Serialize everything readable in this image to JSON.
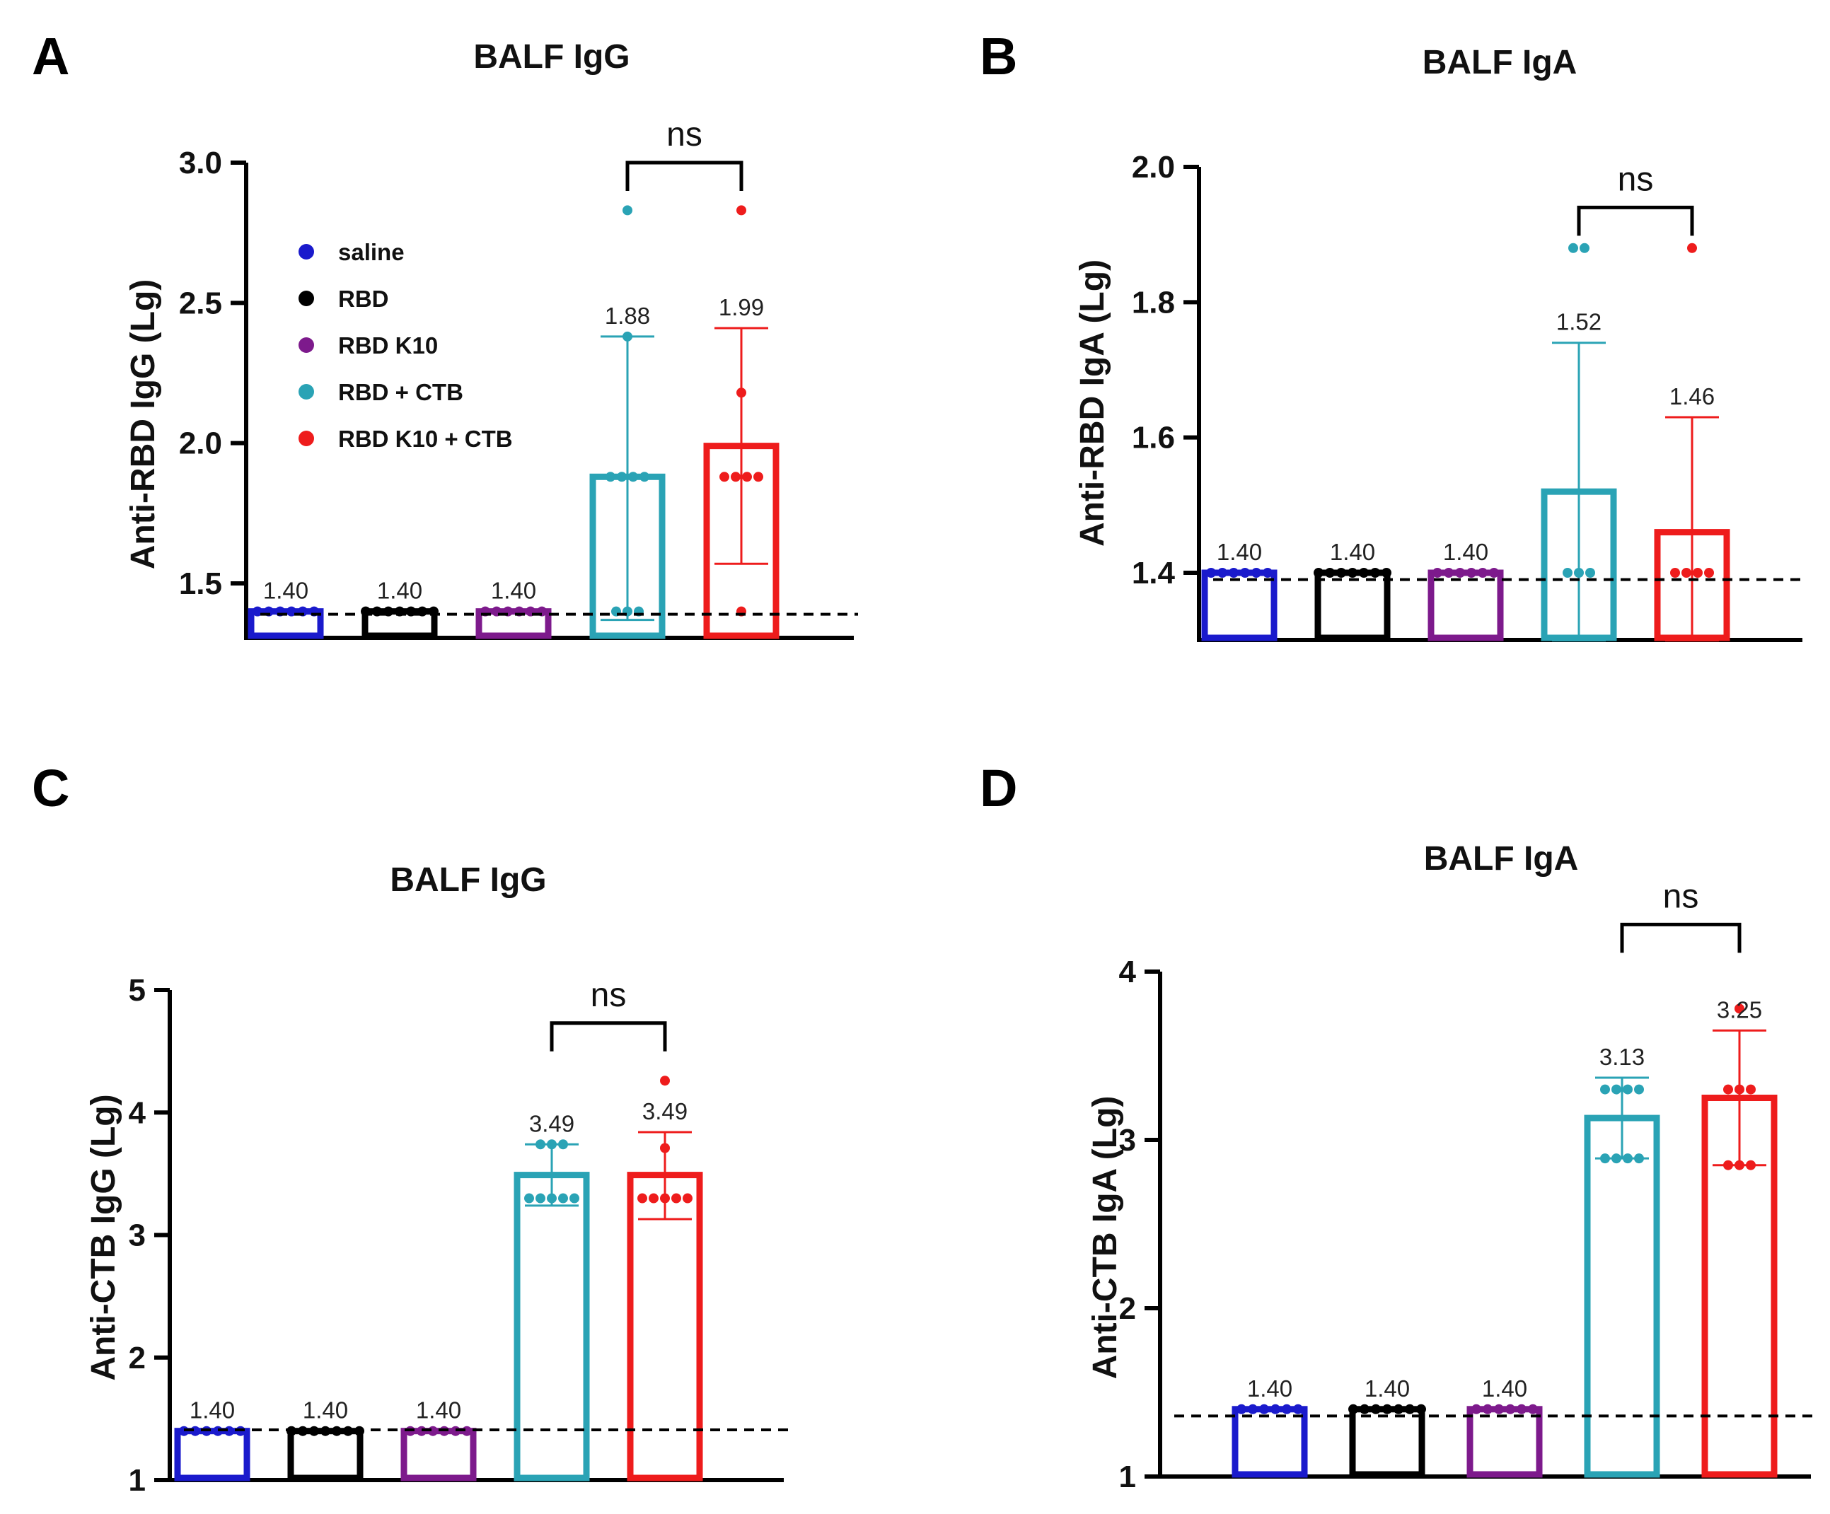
{
  "colors": {
    "saline": "#1a1acc",
    "RBD": "#000000",
    "RBD K10": "#7d1a8c",
    "RBD + CTB": "#2aa3b5",
    "RBD K10 + CTB": "#ee1c1c",
    "axis": "#000000"
  },
  "legend": {
    "placement": "top-left of panel A",
    "entries": [
      "saline",
      "RBD",
      "RBD K10",
      "RBD + CTB",
      "RBD K10 + CTB"
    ]
  },
  "chart_data": [
    {
      "panel": "A",
      "type": "bar",
      "title": "BALF IgG",
      "ylabel": "Anti-RBD IgG (Lg)",
      "ylim": [
        1.3,
        3.0
      ],
      "yticks": [
        "1.5",
        "2.0",
        "2.5",
        "3.0"
      ],
      "detection_limit": 1.39,
      "categories": [
        "saline",
        "RBD",
        "RBD K10",
        "RBD + CTB",
        "RBD K10 + CTB"
      ],
      "values": [
        1.4,
        1.4,
        1.4,
        1.88,
        1.99
      ],
      "value_labels": [
        "1.40",
        "1.40",
        "1.40",
        "1.88",
        "1.99"
      ],
      "error_low": [
        null,
        null,
        null,
        1.37,
        1.57
      ],
      "error_high": [
        null,
        null,
        null,
        2.38,
        2.41
      ],
      "points": [
        [
          1.4,
          1.4,
          1.4,
          1.4,
          1.4,
          1.4
        ],
        [
          1.4,
          1.4,
          1.4,
          1.4,
          1.4,
          1.4,
          1.4
        ],
        [
          1.4,
          1.4,
          1.4,
          1.4,
          1.4,
          1.4
        ],
        [
          2.83,
          2.38,
          1.88,
          1.88,
          1.88,
          1.88,
          1.4,
          1.4,
          1.4
        ],
        [
          2.83,
          2.18,
          1.88,
          1.88,
          1.88,
          1.88,
          1.4
        ]
      ],
      "comparison": {
        "from": 3,
        "to": 4,
        "label": "ns",
        "value": 3.0
      }
    },
    {
      "panel": "B",
      "type": "bar",
      "title": "BALF IgA",
      "ylabel": "Anti-RBD IgA (Lg)",
      "ylim": [
        1.3,
        2.0
      ],
      "yticks": [
        "1.4",
        "1.6",
        "1.8",
        "2.0"
      ],
      "detection_limit": 1.39,
      "categories": [
        "saline",
        "RBD",
        "RBD K10",
        "RBD + CTB",
        "RBD K10 + CTB"
      ],
      "values": [
        1.4,
        1.4,
        1.4,
        1.52,
        1.46
      ],
      "value_labels": [
        "1.40",
        "1.40",
        "1.40",
        "1.52",
        "1.46"
      ],
      "error_low": [
        null,
        null,
        null,
        1.3,
        1.3
      ],
      "error_high": [
        null,
        null,
        null,
        1.74,
        1.63
      ],
      "points": [
        [
          1.4,
          1.4,
          1.4,
          1.4,
          1.4,
          1.4
        ],
        [
          1.4,
          1.4,
          1.4,
          1.4,
          1.4,
          1.4,
          1.4
        ],
        [
          1.4,
          1.4,
          1.4,
          1.4,
          1.4,
          1.4
        ],
        [
          1.88,
          1.88,
          1.4,
          1.4,
          1.4
        ],
        [
          1.88,
          1.4,
          1.4,
          1.4,
          1.4
        ]
      ],
      "comparison": {
        "from": 3,
        "to": 4,
        "label": "ns",
        "value": 1.94
      }
    },
    {
      "panel": "C",
      "type": "bar",
      "title": "BALF IgG",
      "ylabel": "Anti-CTB IgG (Lg)",
      "ylim": [
        1,
        5
      ],
      "yticks": [
        "1",
        "2",
        "3",
        "4",
        "5"
      ],
      "detection_limit": 1.41,
      "categories": [
        "saline",
        "RBD",
        "RBD K10",
        "RBD + CTB",
        "RBD K10 + CTB"
      ],
      "values": [
        1.4,
        1.4,
        1.4,
        3.49,
        3.49
      ],
      "value_labels": [
        "1.40",
        "1.40",
        "1.40",
        "3.49",
        "3.49"
      ],
      "error_low": [
        null,
        null,
        null,
        3.24,
        3.13
      ],
      "error_high": [
        null,
        null,
        null,
        3.74,
        3.84
      ],
      "points": [
        [
          1.4,
          1.4,
          1.4,
          1.4,
          1.4,
          1.4
        ],
        [
          1.4,
          1.4,
          1.4,
          1.4,
          1.4,
          1.4,
          1.4
        ],
        [
          1.4,
          1.4,
          1.4,
          1.4,
          1.4,
          1.4
        ],
        [
          3.74,
          3.74,
          3.74,
          3.3,
          3.3,
          3.3,
          3.3,
          3.3
        ],
        [
          4.26,
          3.71,
          3.3,
          3.3,
          3.3,
          3.3,
          3.3
        ]
      ],
      "comparison": {
        "from": 3,
        "to": 4,
        "label": "ns",
        "value": 4.73
      }
    },
    {
      "panel": "D",
      "type": "bar",
      "title": "BALF IgA",
      "ylabel": "Anti-CTB IgA (Lg)",
      "ylim": [
        1,
        4
      ],
      "yticks": [
        "1",
        "2",
        "3",
        "4"
      ],
      "detection_limit": 1.36,
      "categories": [
        "saline",
        "RBD",
        "RBD K10",
        "RBD + CTB",
        "RBD K10 + CTB"
      ],
      "values": [
        1.4,
        1.4,
        1.4,
        3.13,
        3.25
      ],
      "value_labels": [
        "1.40",
        "1.40",
        "1.40",
        "3.13",
        "3.25"
      ],
      "error_low": [
        null,
        null,
        null,
        2.89,
        2.85
      ],
      "error_high": [
        null,
        null,
        null,
        3.37,
        3.65
      ],
      "points": [
        [
          1.4,
          1.4,
          1.4,
          1.4,
          1.4,
          1.4
        ],
        [
          1.4,
          1.4,
          1.4,
          1.4,
          1.4,
          1.4,
          1.4
        ],
        [
          1.4,
          1.4,
          1.4,
          1.4,
          1.4,
          1.4
        ],
        [
          3.3,
          3.3,
          3.3,
          3.3,
          2.89,
          2.89,
          2.89,
          2.89
        ],
        [
          3.78,
          3.3,
          3.3,
          3.3,
          2.85,
          2.85,
          2.85
        ]
      ],
      "comparison": {
        "from": 3,
        "to": 4,
        "label": "ns",
        "value": 4.28
      }
    }
  ]
}
